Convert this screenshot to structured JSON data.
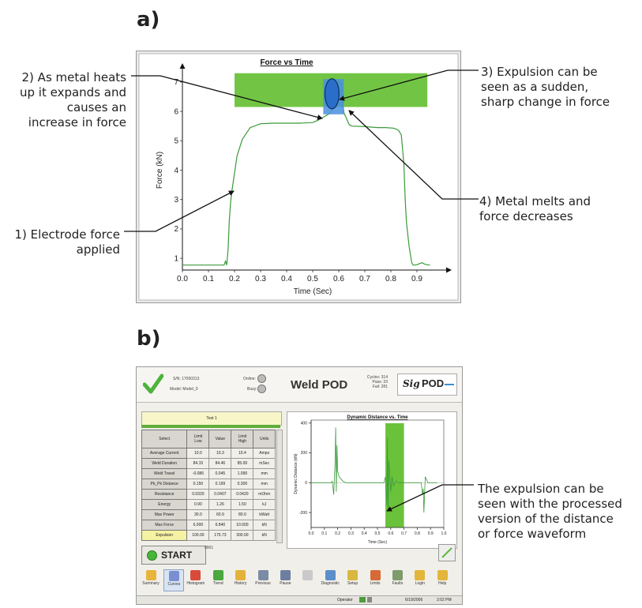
{
  "panels": {
    "a": "a)",
    "b": "b)"
  },
  "force_chart_annotations": [
    "2) As metal heats\nup it expands and\ncauses an\nincrease in force",
    "1) Electrode force\napplied",
    "3) Expulsion can be\nseen as a sudden,\nsharp change in force",
    "4) Metal melts and\nforce decreases"
  ],
  "expulsion_annotation": "The expulsion can be\nseen with the processed\nversion of the distance\nor force waveform",
  "chart_data": [
    {
      "type": "line",
      "title": "Force vs Time",
      "xlabel": "Time (Sec)",
      "ylabel": "Force (kN)",
      "xlim": [
        0,
        1.0
      ],
      "ylim": [
        0.6,
        7.4
      ],
      "xticks": [
        "0.0",
        "0.1",
        "0.2",
        "0.3",
        "0.4",
        "0.5",
        "0.6",
        "0.7",
        "0.8",
        "0.9"
      ],
      "yticks": [
        "1",
        "2",
        "3",
        "4",
        "5",
        "6",
        "7"
      ],
      "highlight_band": {
        "y": [
          6.15,
          7.3
        ],
        "color": "#6ac23a"
      },
      "highlight_marker": {
        "x": 0.58,
        "y": 6.6,
        "color": "#2b6ec9"
      },
      "series": [
        {
          "color": "#3a9a3a",
          "x": [
            0.0,
            0.08,
            0.16,
            0.165,
            0.17,
            0.175,
            0.18,
            0.185,
            0.19,
            0.2,
            0.21,
            0.23,
            0.26,
            0.3,
            0.35,
            0.4,
            0.45,
            0.5,
            0.52,
            0.54,
            0.55,
            0.56,
            0.57,
            0.58,
            0.59,
            0.6,
            0.605,
            0.61,
            0.615,
            0.62,
            0.63,
            0.64,
            0.65,
            0.7,
            0.75,
            0.78,
            0.81,
            0.82,
            0.83,
            0.84,
            0.85,
            0.855,
            0.86,
            0.87,
            0.88,
            0.885,
            0.89,
            0.9,
            0.91,
            0.92,
            0.93,
            0.94,
            0.95
          ],
          "y": [
            0.77,
            0.77,
            0.77,
            0.9,
            0.77,
            1.3,
            2.3,
            2.9,
            3.3,
            3.9,
            4.5,
            5.05,
            5.45,
            5.58,
            5.6,
            5.6,
            5.6,
            5.62,
            5.7,
            5.8,
            5.85,
            5.9,
            6.0,
            6.1,
            6.5,
            7.05,
            7.0,
            6.95,
            6.3,
            5.95,
            5.75,
            5.55,
            5.5,
            5.48,
            5.45,
            5.45,
            5.43,
            5.4,
            5.35,
            5.2,
            4.2,
            3.0,
            2.2,
            1.4,
            0.85,
            0.77,
            0.77,
            0.78,
            0.82,
            0.85,
            0.8,
            0.78,
            0.77
          ]
        }
      ]
    },
    {
      "type": "line",
      "title": "Dynamic Distance vs. Time",
      "xlabel": "Time (Sec)",
      "ylabel": "Dynamic Distance (kN)",
      "xlim": [
        0,
        1.0
      ],
      "ylim": [
        -300,
        420
      ],
      "xticks": [
        "0.0",
        "0.1",
        "0.2",
        "0.3",
        "0.4",
        "0.5",
        "0.6",
        "0.7",
        "0.8",
        "0.9",
        "1.0"
      ],
      "yticks": [
        "400",
        "200",
        "0",
        "-200"
      ],
      "highlight_band": {
        "x": [
          0.56,
          0.7
        ],
        "color": "#6ac23a"
      },
      "series": [
        {
          "color": "#3a9a3a",
          "x": [
            0.0,
            0.05,
            0.1,
            0.15,
            0.16,
            0.17,
            0.18,
            0.185,
            0.19,
            0.195,
            0.2,
            0.21,
            0.22,
            0.24,
            0.26,
            0.3,
            0.35,
            0.4,
            0.45,
            0.5,
            0.55,
            0.56,
            0.57,
            0.575,
            0.58,
            0.585,
            0.59,
            0.6,
            0.61,
            0.62,
            0.64,
            0.66,
            0.7,
            0.75,
            0.8,
            0.83,
            0.84,
            0.845,
            0.85,
            0.86,
            0.87,
            0.88,
            0.9,
            0.95
          ],
          "y": [
            0,
            0,
            0,
            0,
            10,
            -80,
            120,
            370,
            -60,
            250,
            80,
            40,
            30,
            10,
            0,
            0,
            0,
            0,
            0,
            0,
            0,
            40,
            -150,
            300,
            -200,
            150,
            90,
            -60,
            40,
            -20,
            10,
            0,
            0,
            0,
            0,
            0,
            -80,
            -40,
            -200,
            40,
            20,
            0,
            0,
            0
          ]
        }
      ]
    }
  ],
  "pod": {
    "sn_label": "S/N:",
    "sn_value": "17000313",
    "model_label": "Model:",
    "model_value": "Model_0",
    "online_label": "Online:",
    "busy_label": "Busy:",
    "title": "Weld POD",
    "cycles": "Cycles: 314",
    "pass": "Pass: 33",
    "fail": "Fail: 281",
    "logo_sig": "Sig",
    "logo_pod": "POD",
    "test_name": "Test 1",
    "table_headers": [
      "Select",
      "Limit\nLow",
      "Value",
      "Limit\nHigh",
      "Units"
    ],
    "rows": [
      [
        "Average Current",
        "10.0",
        "10.3",
        "10.4",
        "Amps"
      ],
      [
        "Weld Duration",
        "84.15",
        "84.46",
        "85.00",
        "mSec"
      ],
      [
        "Weld Travel",
        "-0.086",
        "0.045",
        "1.090",
        "mm"
      ],
      [
        "Pk_Pk Distance",
        "0.150",
        "0.199",
        "0.300",
        "mm"
      ],
      [
        "Resistance",
        "0.0320",
        "0.0407",
        "0.0420",
        "mOhm"
      ],
      [
        "Energy",
        "0.90",
        "1.26",
        "1.50",
        "kJ"
      ],
      [
        "Max Power",
        "30.0",
        "60.9",
        "80.0",
        "kWatt"
      ],
      [
        "Max Force",
        "6.000",
        "6.840",
        "10.000",
        "kN"
      ],
      [
        "Expulsion",
        "100.00",
        "175.73",
        "300.00",
        "kN"
      ]
    ],
    "start": "START",
    "counter": "0001",
    "toolbar": [
      "Summary",
      "Curves",
      "Histogram",
      "Trend",
      "History",
      "Previous",
      "Pause",
      "",
      "Diagnostic",
      "Setup",
      "Limits",
      "Faults",
      "Login",
      "Help"
    ],
    "status_operator": "Operator",
    "status_date": "6/19/2006",
    "status_time": "2:02 PM"
  },
  "colors": {
    "highlight": "#6ac23a",
    "marker": "#2b6ec9",
    "curve": "#3a9a3a"
  }
}
